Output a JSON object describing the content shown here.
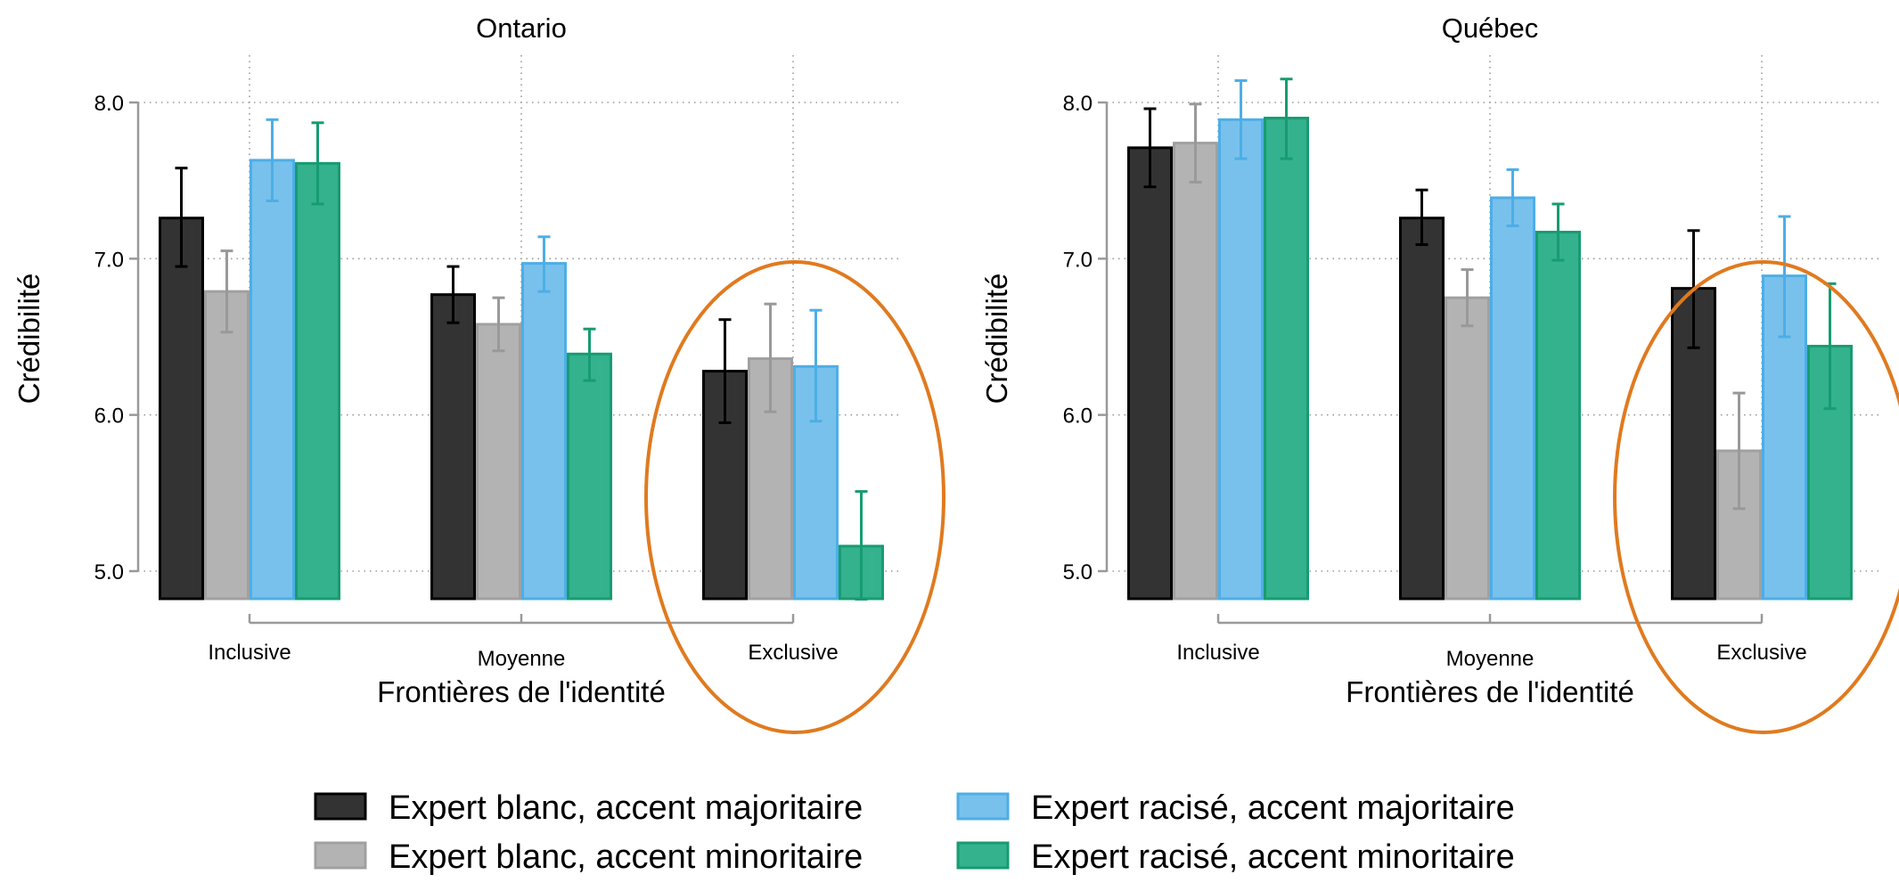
{
  "series_styles": [
    {
      "name": "Expert blanc, accent majoritaire",
      "fill": "#333333",
      "stroke": "#000000",
      "err": "#000000"
    },
    {
      "name": "Expert blanc, accent minoritaire",
      "fill": "#b3b3b3",
      "stroke": "#a0a0a0",
      "err": "#999999"
    },
    {
      "name": "Expert racisé, accent majoritaire",
      "fill": "#78c1ec",
      "stroke": "#4daee6",
      "err": "#4daee6"
    },
    {
      "name": "Expert racisé, accent minoritaire",
      "fill": "#34b18d",
      "stroke": "#179c72",
      "err": "#179c72"
    }
  ],
  "highlight_color": "#e07a1f",
  "chart_data": [
    {
      "type": "bar",
      "title": "Ontario",
      "xlabel": "Frontières de l'identité",
      "ylabel": "Crédibilité",
      "categories": [
        "Inclusive",
        "Moyenne",
        "Exclusive"
      ],
      "yticks": [
        "5.0",
        "6.0",
        "7.0",
        "8.0"
      ],
      "ylim": [
        4.82,
        8.3
      ],
      "grid": true,
      "highlighted_category": "Exclusive",
      "series": [
        {
          "name": "Expert blanc, accent majoritaire",
          "values": [
            7.26,
            6.77,
            6.28
          ],
          "ci_low": [
            6.95,
            6.59,
            5.95
          ],
          "ci_high": [
            7.58,
            6.95,
            6.61
          ]
        },
        {
          "name": "Expert blanc, accent minoritaire",
          "values": [
            6.79,
            6.58,
            6.36
          ],
          "ci_low": [
            6.53,
            6.41,
            6.02
          ],
          "ci_high": [
            7.05,
            6.75,
            6.71
          ]
        },
        {
          "name": "Expert racisé, accent majoritaire",
          "values": [
            7.63,
            6.97,
            6.31
          ],
          "ci_low": [
            7.37,
            6.79,
            5.96
          ],
          "ci_high": [
            7.89,
            7.14,
            6.67
          ]
        },
        {
          "name": "Expert racisé, accent minoritaire",
          "values": [
            7.61,
            6.39,
            5.16
          ],
          "ci_low": [
            7.35,
            6.22,
            4.82
          ],
          "ci_high": [
            7.87,
            6.55,
            5.51
          ]
        }
      ]
    },
    {
      "type": "bar",
      "title": "Québec",
      "xlabel": "Frontières de l'identité",
      "ylabel": "Crédibilité",
      "categories": [
        "Inclusive",
        "Moyenne",
        "Exclusive"
      ],
      "yticks": [
        "5.0",
        "6.0",
        "7.0",
        "8.0"
      ],
      "ylim": [
        4.82,
        8.3
      ],
      "grid": true,
      "highlighted_category": "Exclusive",
      "series": [
        {
          "name": "Expert blanc, accent majoritaire",
          "values": [
            7.71,
            7.26,
            6.81
          ],
          "ci_low": [
            7.46,
            7.09,
            6.43
          ],
          "ci_high": [
            7.96,
            7.44,
            7.18
          ]
        },
        {
          "name": "Expert blanc, accent minoritaire",
          "values": [
            7.74,
            6.75,
            5.77
          ],
          "ci_low": [
            7.49,
            6.57,
            5.4
          ],
          "ci_high": [
            7.99,
            6.93,
            6.14
          ]
        },
        {
          "name": "Expert racisé, accent majoritaire",
          "values": [
            7.89,
            7.39,
            6.89
          ],
          "ci_low": [
            7.64,
            7.21,
            6.5
          ],
          "ci_high": [
            8.14,
            7.57,
            7.27
          ]
        },
        {
          "name": "Expert racisé, accent minoritaire",
          "values": [
            7.9,
            7.17,
            6.44
          ],
          "ci_low": [
            7.64,
            6.99,
            6.04
          ],
          "ci_high": [
            8.15,
            7.35,
            6.84
          ]
        }
      ]
    }
  ],
  "legend": [
    "Expert blanc, accent majoritaire",
    "Expert blanc, accent minoritaire",
    "Expert racisé, accent majoritaire",
    "Expert racisé, accent minoritaire"
  ]
}
